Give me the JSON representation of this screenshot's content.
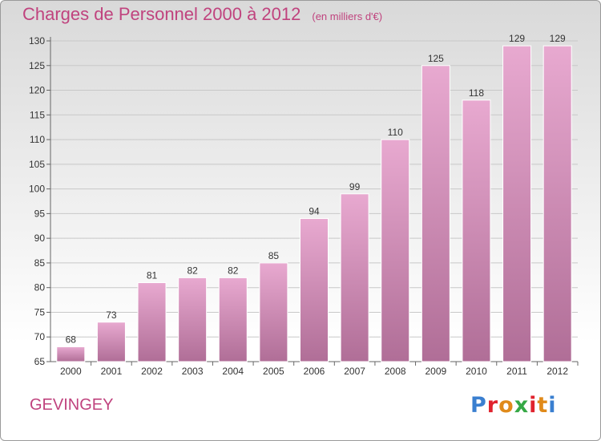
{
  "header": {
    "title": "Charges de Personnel 2000 à 2012",
    "unit": "(en milliers d'€)"
  },
  "footer": {
    "commune": "GEVINGEY",
    "logo": {
      "text": "Proxiti",
      "letter_colors": [
        "#3a7fd0",
        "#e0232e",
        "#e08a1a",
        "#35a845",
        "#e0232e",
        "#e08a1a",
        "#3a7fd0"
      ]
    }
  },
  "chart_data": {
    "type": "bar",
    "title": "Charges de Personnel 2000 à 2012",
    "subtitle": "(en milliers d'€)",
    "xlabel": "",
    "ylabel": "",
    "categories": [
      "2000",
      "2001",
      "2002",
      "2003",
      "2004",
      "2005",
      "2006",
      "2007",
      "2008",
      "2009",
      "2010",
      "2011",
      "2012"
    ],
    "values": [
      68,
      73,
      81,
      82,
      82,
      85,
      94,
      99,
      110,
      125,
      118,
      129,
      129
    ],
    "ylim": [
      65,
      130
    ],
    "yticks": [
      65,
      70,
      75,
      80,
      85,
      90,
      95,
      100,
      105,
      110,
      115,
      120,
      125,
      130
    ],
    "grid": true,
    "legend": "none",
    "colors": {
      "bar_top": "#e8a9d0",
      "bar_bottom": "#b06e97",
      "text": "#333333",
      "grid": "#c8c8c8"
    }
  }
}
